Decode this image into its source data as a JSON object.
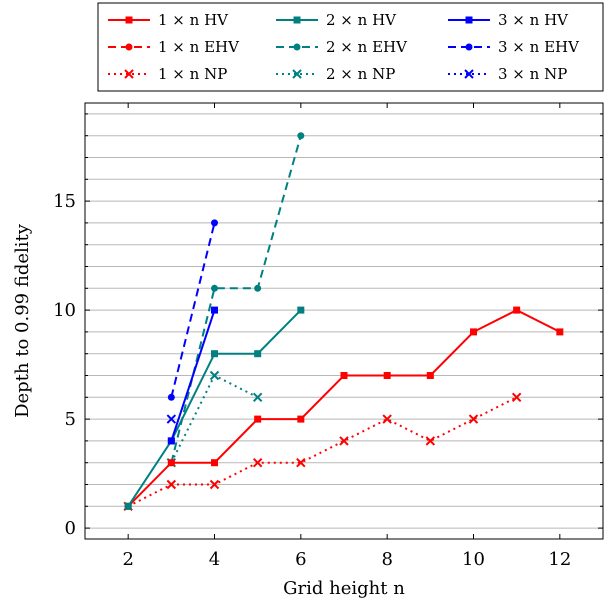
{
  "chart_data": {
    "type": "line",
    "xlabel": "Grid height n",
    "ylabel": "Depth to 0.99 fidelity",
    "xlim": [
      1,
      13
    ],
    "ylim": [
      -0.5,
      19.5
    ],
    "xticks": [
      2,
      4,
      6,
      8,
      10,
      12
    ],
    "yticks": [
      0,
      5,
      10,
      15
    ],
    "y_minor_ticks": [
      1,
      2,
      3,
      4,
      6,
      7,
      8,
      9,
      11,
      12,
      13,
      14,
      16,
      17,
      18,
      19
    ],
    "grid": "horizontal",
    "legend_position": "top",
    "series": [
      {
        "name": "1 × n HV",
        "color": "#ff0000",
        "style": "solid",
        "marker": "square",
        "x": [
          2,
          3,
          4,
          5,
          6,
          7,
          8,
          9,
          10,
          11,
          12
        ],
        "y": [
          1,
          3,
          3,
          5,
          5,
          7,
          7,
          7,
          9,
          10,
          9
        ]
      },
      {
        "name": "2 × n HV",
        "color": "#008080",
        "style": "solid",
        "marker": "square",
        "x": [
          2,
          3,
          4,
          5,
          6
        ],
        "y": [
          1,
          4,
          8,
          8,
          10
        ]
      },
      {
        "name": "3 × n HV",
        "color": "#0000ff",
        "style": "solid",
        "marker": "square",
        "x": [
          3,
          4
        ],
        "y": [
          4,
          10
        ]
      },
      {
        "name": "1 × n EHV",
        "color": "#ff0000",
        "style": "dashed",
        "marker": "circle",
        "x": [],
        "y": []
      },
      {
        "name": "2 × n EHV",
        "color": "#008080",
        "style": "dashed",
        "marker": "circle",
        "x": [
          3,
          4,
          5,
          6
        ],
        "y": [
          3,
          11,
          11,
          18
        ]
      },
      {
        "name": "3 × n EHV",
        "color": "#0000ff",
        "style": "dashed",
        "marker": "circle",
        "x": [
          3,
          4
        ],
        "y": [
          6,
          14
        ]
      },
      {
        "name": "1 × n NP",
        "color": "#ff0000",
        "style": "dotted",
        "marker": "cross",
        "x": [
          2,
          3,
          4,
          5,
          6,
          7,
          8,
          9,
          10,
          11
        ],
        "y": [
          1,
          2,
          2,
          3,
          3,
          4,
          5,
          4,
          5,
          6
        ]
      },
      {
        "name": "2 × n NP",
        "color": "#008080",
        "style": "dotted",
        "marker": "cross",
        "x": [
          3,
          4,
          5
        ],
        "y": [
          3,
          7,
          6
        ]
      },
      {
        "name": "3 × n NP",
        "color": "#0000ff",
        "style": "dotted",
        "marker": "cross",
        "x": [
          3
        ],
        "y": [
          5
        ]
      }
    ],
    "legend_order": [
      0,
      3,
      6,
      1,
      4,
      7,
      2,
      5,
      8
    ]
  }
}
